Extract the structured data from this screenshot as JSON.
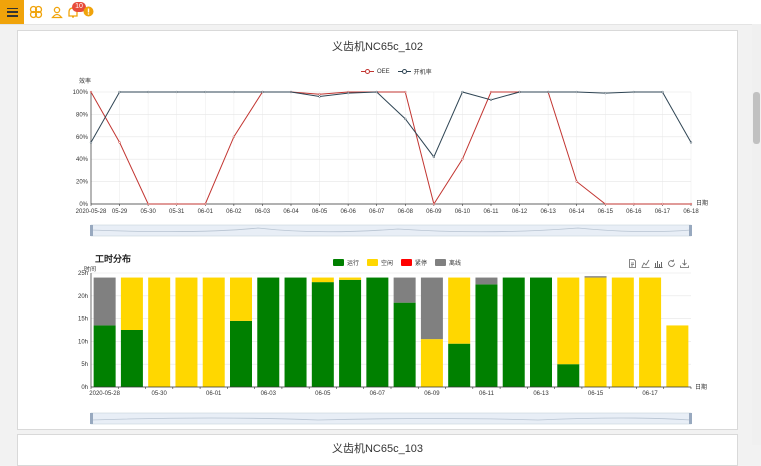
{
  "header": {
    "menu_icon": "hamburger-icon",
    "logo_icon": "lattice-logo-icon",
    "user_icon": "user-icon",
    "bell_icon": "bell-icon",
    "notification_count": "10",
    "status_icon": "alert-dot-icon"
  },
  "chart1": {
    "title": "义齿机NC65c_102",
    "legend": [
      "OEE",
      "开机率"
    ],
    "ylabel": "效率",
    "xlabel": "日期"
  },
  "chart2": {
    "title": "工时分布",
    "legend": [
      "运行",
      "空闲",
      "紧停",
      "离线"
    ],
    "ylabel": "时间",
    "xlabel": "日期",
    "tools": [
      "data-view-icon",
      "line-chart-icon",
      "bar-chart-icon",
      "restore-icon",
      "download-icon"
    ]
  },
  "chart3": {
    "title": "义齿机NC65c_103"
  },
  "chart_data": [
    {
      "type": "line",
      "title": "义齿机NC65c_102",
      "xlabel": "日期",
      "ylabel": "效率",
      "categories": [
        "2020-05-28",
        "05-29",
        "05-30",
        "05-31",
        "06-01",
        "06-02",
        "06-03",
        "06-04",
        "06-05",
        "06-06",
        "06-07",
        "06-08",
        "06-09",
        "06-10",
        "06-11",
        "06-12",
        "06-13",
        "06-14",
        "06-15",
        "06-16",
        "06-17",
        "06-18"
      ],
      "yticks": [
        "0%",
        "20%",
        "40%",
        "60%",
        "80%",
        "100%"
      ],
      "ylim": [
        0,
        100
      ],
      "series": [
        {
          "name": "OEE",
          "color": "#c23531",
          "values": [
            100,
            55,
            0,
            0,
            0,
            60,
            100,
            100,
            98,
            100,
            100,
            100,
            0,
            40,
            100,
            100,
            100,
            20,
            0,
            0,
            0,
            0
          ]
        },
        {
          "name": "开机率",
          "color": "#2f4554",
          "values": [
            55,
            100,
            100,
            100,
            100,
            100,
            100,
            100,
            96,
            99,
            100,
            76,
            42,
            100,
            93,
            100,
            100,
            100,
            99,
            100,
            100,
            55
          ]
        }
      ],
      "legend_position": "top-center",
      "grid": true
    },
    {
      "type": "bar",
      "stacked": true,
      "title": "工时分布",
      "xlabel": "日期",
      "ylabel": "时间",
      "categories": [
        "2020-05-28",
        "05-29",
        "05-30",
        "05-31",
        "06-01",
        "06-02",
        "06-03",
        "06-04",
        "06-05",
        "06-06",
        "06-07",
        "06-08",
        "06-09",
        "06-10",
        "06-11",
        "06-12",
        "06-13",
        "06-14",
        "06-15",
        "06-16",
        "06-17",
        "06-18"
      ],
      "xtick_labels": [
        "2020-05-28",
        "",
        "05-30",
        "",
        "06-01",
        "",
        "06-03",
        "",
        "06-05",
        "",
        "06-07",
        "",
        "06-09",
        "",
        "06-11",
        "",
        "06-13",
        "",
        "06-15",
        "",
        "06-17",
        ""
      ],
      "yticks": [
        "0h",
        "5h",
        "10h",
        "15h",
        "20h",
        "25h"
      ],
      "ylim": [
        0,
        25
      ],
      "series": [
        {
          "name": "运行",
          "color": "#008000",
          "values": [
            13.5,
            12.5,
            0,
            0,
            0,
            14.5,
            24,
            24,
            23,
            23.5,
            24,
            18.5,
            0,
            9.5,
            22.5,
            24,
            24,
            5,
            0,
            0,
            0,
            0
          ]
        },
        {
          "name": "空闲",
          "color": "#ffd700",
          "values": [
            0,
            11.5,
            24,
            24,
            24,
            9.5,
            0,
            0,
            1,
            0.5,
            0,
            0,
            10.5,
            14.5,
            0,
            0,
            0,
            19,
            24,
            24,
            24,
            13.5
          ]
        },
        {
          "name": "紧停",
          "color": "#ff0000",
          "values": [
            0,
            0,
            0,
            0,
            0,
            0,
            0,
            0,
            0,
            0,
            0,
            0,
            0,
            0,
            0,
            0,
            0,
            0,
            0,
            0,
            0,
            0
          ]
        },
        {
          "name": "离线",
          "color": "#808080",
          "values": [
            10.5,
            0,
            0,
            0,
            0,
            0,
            0,
            0,
            0,
            0,
            0,
            5.5,
            13.5,
            0,
            1.5,
            0,
            0,
            0,
            0.3,
            0,
            0,
            0
          ]
        }
      ],
      "legend_position": "top-center",
      "grid": true
    }
  ]
}
